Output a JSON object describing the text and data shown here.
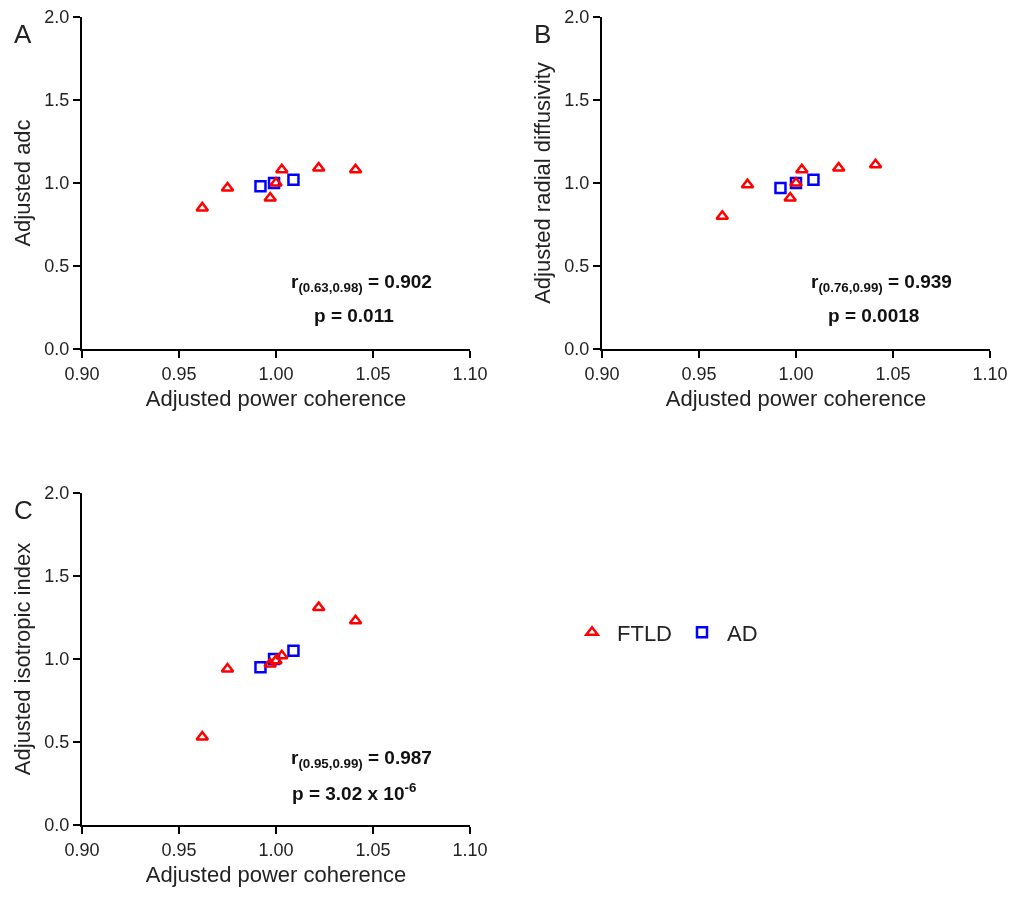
{
  "chart_data": [
    {
      "type": "scatter",
      "title": "A",
      "xlabel": "Adjusted power coherence",
      "ylabel": "Adjusted adc",
      "xlim": [
        0.9,
        1.1
      ],
      "xticks": [
        {
          "value": 0.9,
          "label": "0.90"
        },
        {
          "value": 0.95,
          "label": "0.95"
        },
        {
          "value": 1,
          "label": "1.00"
        },
        {
          "value": 1.05,
          "label": "1.05"
        },
        {
          "value": 1.1,
          "label": "1.10"
        }
      ],
      "ylim": [
        0,
        2
      ],
      "yticks": [
        {
          "value": 0,
          "label": "0.0"
        },
        {
          "value": 0.5,
          "label": "0.5"
        },
        {
          "value": 1,
          "label": "1.0"
        },
        {
          "value": 1.5,
          "label": "1.5"
        },
        {
          "value": 2,
          "label": "2.0"
        }
      ],
      "grid": false,
      "legend": false,
      "annotations": [
        "r$_{(0.63,0.98)}$ = 0.902",
        "p = 0.011"
      ],
      "series": [
        {
          "color": "#ff0000",
          "marker": "triangle",
          "x": [
            0.962,
            0.975,
            0.997,
            1.0,
            1.003,
            1.022,
            1.041
          ],
          "values": [
            0.85,
            0.97,
            0.91,
            1.0,
            1.08,
            1.09,
            1.08
          ]
        },
        {
          "color": "#0000ff",
          "marker": "square",
          "x": [
            0.992,
            0.999,
            1.009
          ],
          "values": [
            0.98,
            1.0,
            1.02
          ]
        }
      ]
    },
    {
      "type": "scatter",
      "title": "B",
      "xlabel": "Adjusted power coherence",
      "ylabel": "Adjusted radial diffusivity",
      "xlim": [
        0.9,
        1.1
      ],
      "xticks": [
        {
          "value": 0.9,
          "label": "0.90"
        },
        {
          "value": 0.95,
          "label": "0.95"
        },
        {
          "value": 1,
          "label": "1.00"
        },
        {
          "value": 1.05,
          "label": "1.05"
        },
        {
          "value": 1.1,
          "label": "1.10"
        }
      ],
      "ylim": [
        0,
        2
      ],
      "yticks": [
        {
          "value": 0,
          "label": "0.0"
        },
        {
          "value": 0.5,
          "label": "0.5"
        },
        {
          "value": 1,
          "label": "1.0"
        },
        {
          "value": 1.5,
          "label": "1.5"
        },
        {
          "value": 2,
          "label": "2.0"
        }
      ],
      "grid": false,
      "legend": false,
      "annotations": [
        "r$_{(0.76,0.99)}$ = 0.939",
        "p = 0.0018"
      ],
      "series": [
        {
          "color": "#ff0000",
          "marker": "triangle",
          "x": [
            0.962,
            0.975,
            0.997,
            1.0,
            1.003,
            1.022,
            1.041
          ],
          "values": [
            0.8,
            0.99,
            0.91,
            1.0,
            1.08,
            1.09,
            1.11
          ]
        },
        {
          "color": "#0000ff",
          "marker": "square",
          "x": [
            0.992,
            1.0,
            1.009
          ],
          "values": [
            0.97,
            1.0,
            1.02
          ]
        }
      ]
    },
    {
      "type": "scatter",
      "title": "C",
      "xlabel": "Adjusted power coherence",
      "ylabel": "Adjusted isotropic index",
      "xlim": [
        0.9,
        1.1
      ],
      "xticks": [
        {
          "value": 0.9,
          "label": "0.90"
        },
        {
          "value": 0.95,
          "label": "0.95"
        },
        {
          "value": 1,
          "label": "1.00"
        },
        {
          "value": 1.05,
          "label": "1.05"
        },
        {
          "value": 1.1,
          "label": "1.10"
        }
      ],
      "ylim": [
        0,
        2
      ],
      "yticks": [
        {
          "value": 0,
          "label": "0.0"
        },
        {
          "value": 0.5,
          "label": "0.5"
        },
        {
          "value": 1,
          "label": "1.0"
        },
        {
          "value": 1.5,
          "label": "1.5"
        },
        {
          "value": 2,
          "label": "2.0"
        }
      ],
      "grid": false,
      "legend": "right",
      "annotations": [
        "r$_{(0.95,0.99)}$ = 0.987",
        "p = 3.02 x 10$^{-6}$"
      ],
      "series": [
        {
          "name": "FTLD",
          "color": "#ff0000",
          "marker": "triangle",
          "x": [
            0.962,
            0.975,
            0.997,
            1.0,
            1.003,
            1.022,
            1.041
          ],
          "values": [
            0.53,
            0.94,
            0.97,
            0.99,
            1.02,
            1.31,
            1.23
          ]
        },
        {
          "name": "AD",
          "color": "#0000ff",
          "marker": "square",
          "x": [
            0.992,
            0.999,
            1.009
          ],
          "values": [
            0.95,
            1.0,
            1.05
          ]
        }
      ]
    }
  ]
}
